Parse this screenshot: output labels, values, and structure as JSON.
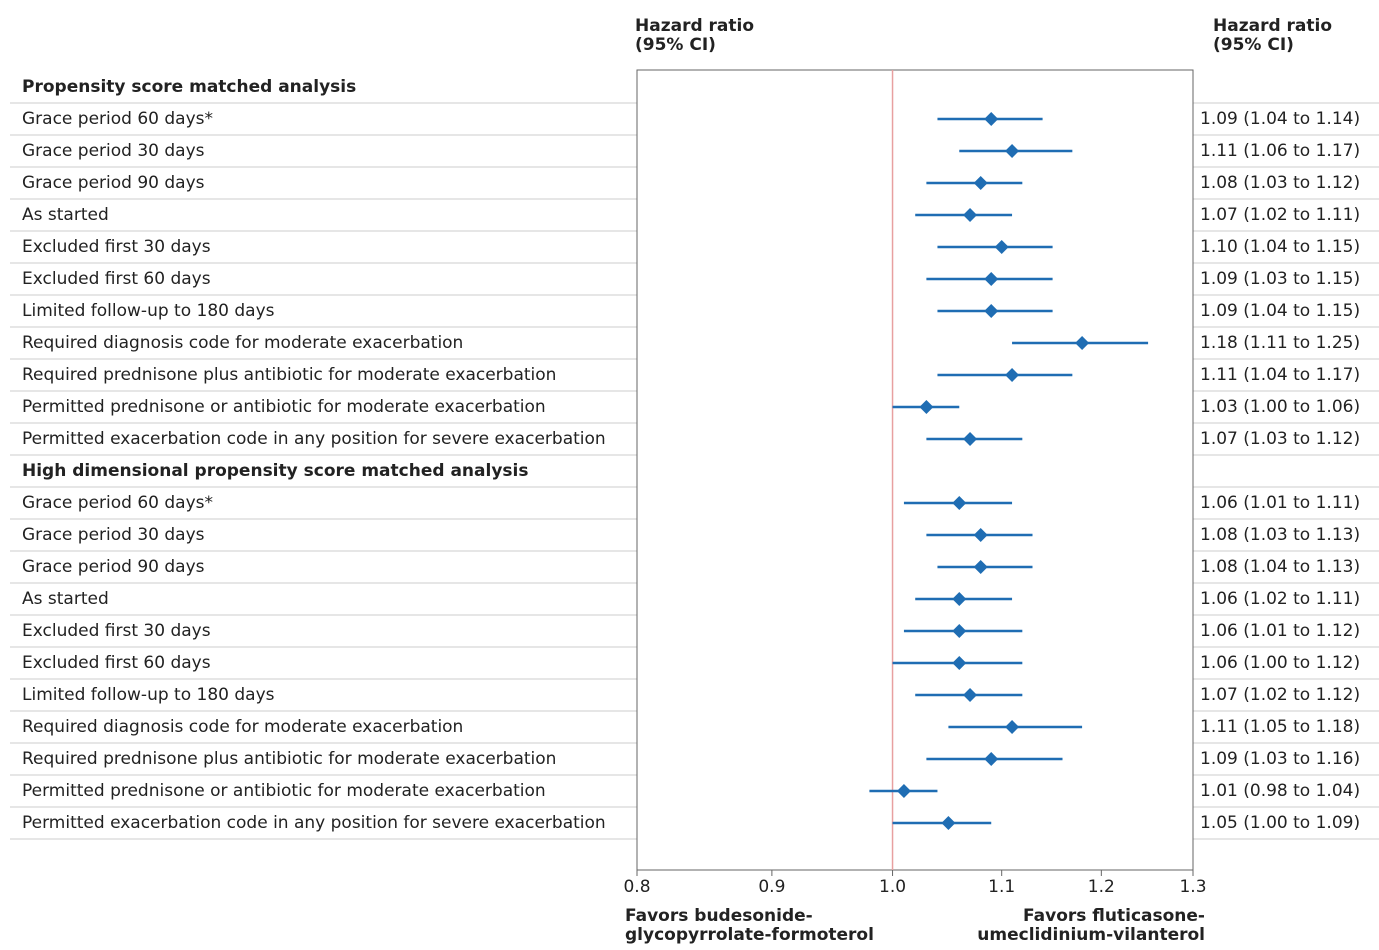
{
  "chart_data": {
    "type": "forest",
    "header_left": [
      "Hazard ratio",
      "(95% CI)"
    ],
    "header_right": [
      "Hazard ratio",
      "(95% CI)"
    ],
    "x_label_left": [
      "Favors budesonide-",
      "glycopyrrolate-formoterol"
    ],
    "x_label_right": [
      "Favors fluticasone-",
      "umeclidinium-vilanterol"
    ],
    "xlim": [
      0.8,
      1.3
    ],
    "xticks": [
      0.8,
      0.9,
      {
        "value": 1.0,
        "label": "1.0"
      },
      1.1,
      1.2,
      1.3
    ],
    "log": true,
    "reference": 1,
    "color": "#1f6db3",
    "reference_color": "#e8a0a0",
    "groups": [
      {
        "name": "Propensity score matched analysis",
        "rows": [
          {
            "label": "Grace period 60 days*",
            "value": 1.09,
            "lower": 1.04,
            "upper": 1.14,
            "value_label": "1.09 (1.04 to 1.14)"
          },
          {
            "label": "Grace period 30 days",
            "value": 1.11,
            "lower": 1.06,
            "upper": 1.17,
            "value_label": "1.11 (1.06 to 1.17)"
          },
          {
            "label": "Grace period 90 days",
            "value": 1.08,
            "lower": 1.03,
            "upper": 1.12,
            "value_label": "1.08 (1.03 to 1.12)"
          },
          {
            "label": "As started",
            "value": 1.07,
            "lower": 1.02,
            "upper": 1.11,
            "value_label": "1.07 (1.02 to 1.11)"
          },
          {
            "label": "Excluded first 30 days",
            "value": 1.1,
            "lower": 1.04,
            "upper": 1.15,
            "value_label": "1.10 (1.04 to 1.15)"
          },
          {
            "label": "Excluded first 60 days",
            "value": 1.09,
            "lower": 1.03,
            "upper": 1.15,
            "value_label": "1.09 (1.03 to 1.15)"
          },
          {
            "label": "Limited follow-up to 180 days",
            "value": 1.09,
            "lower": 1.04,
            "upper": 1.15,
            "value_label": "1.09 (1.04 to 1.15)"
          },
          {
            "label": "Required diagnosis code for moderate exacerbation",
            "value": 1.18,
            "lower": 1.11,
            "upper": 1.25,
            "value_label": "1.18 (1.11 to 1.25)"
          },
          {
            "label": "Required prednisone plus antibiotic for moderate exacerbation",
            "value": 1.11,
            "lower": 1.04,
            "upper": 1.17,
            "value_label": "1.11 (1.04 to 1.17)"
          },
          {
            "label": "Permitted prednisone or antibiotic for moderate exacerbation",
            "value": 1.03,
            "lower": 1.0,
            "upper": 1.06,
            "value_label": "1.03 (1.00 to 1.06)"
          },
          {
            "label": "Permitted exacerbation code in any position for severe exacerbation",
            "value": 1.07,
            "lower": 1.03,
            "upper": 1.12,
            "value_label": "1.07 (1.03 to 1.12)"
          }
        ]
      },
      {
        "name": "High dimensional propensity score matched analysis",
        "rows": [
          {
            "label": "Grace period 60 days*",
            "value": 1.06,
            "lower": 1.01,
            "upper": 1.11,
            "value_label": "1.06 (1.01 to 1.11)"
          },
          {
            "label": "Grace period 30 days",
            "value": 1.08,
            "lower": 1.03,
            "upper": 1.13,
            "value_label": "1.08 (1.03 to 1.13)"
          },
          {
            "label": "Grace period 90 days",
            "value": 1.08,
            "lower": 1.04,
            "upper": 1.13,
            "value_label": "1.08 (1.04 to 1.13)"
          },
          {
            "label": "As started",
            "value": 1.06,
            "lower": 1.02,
            "upper": 1.11,
            "value_label": "1.06 (1.02 to 1.11)"
          },
          {
            "label": "Excluded first 30 days",
            "value": 1.06,
            "lower": 1.01,
            "upper": 1.12,
            "value_label": "1.06 (1.01 to 1.12)"
          },
          {
            "label": "Excluded first 60 days",
            "value": 1.06,
            "lower": 1.0,
            "upper": 1.12,
            "value_label": "1.06 (1.00 to 1.12)"
          },
          {
            "label": "Limited follow-up to 180 days",
            "value": 1.07,
            "lower": 1.02,
            "upper": 1.12,
            "value_label": "1.07 (1.02 to 1.12)"
          },
          {
            "label": "Required diagnosis code for moderate exacerbation",
            "value": 1.11,
            "lower": 1.05,
            "upper": 1.18,
            "value_label": "1.11 (1.05 to 1.18)"
          },
          {
            "label": "Required prednisone plus antibiotic for moderate exacerbation",
            "value": 1.09,
            "lower": 1.03,
            "upper": 1.16,
            "value_label": "1.09 (1.03 to 1.16)"
          },
          {
            "label": "Permitted prednisone or antibiotic for moderate exacerbation",
            "value": 1.01,
            "lower": 0.98,
            "upper": 1.04,
            "value_label": "1.01 (0.98 to 1.04)"
          },
          {
            "label": "Permitted exacerbation code in any position for severe exacerbation",
            "value": 1.05,
            "lower": 1.0,
            "upper": 1.09,
            "value_label": "1.05 (1.00 to 1.09)"
          }
        ]
      }
    ]
  }
}
